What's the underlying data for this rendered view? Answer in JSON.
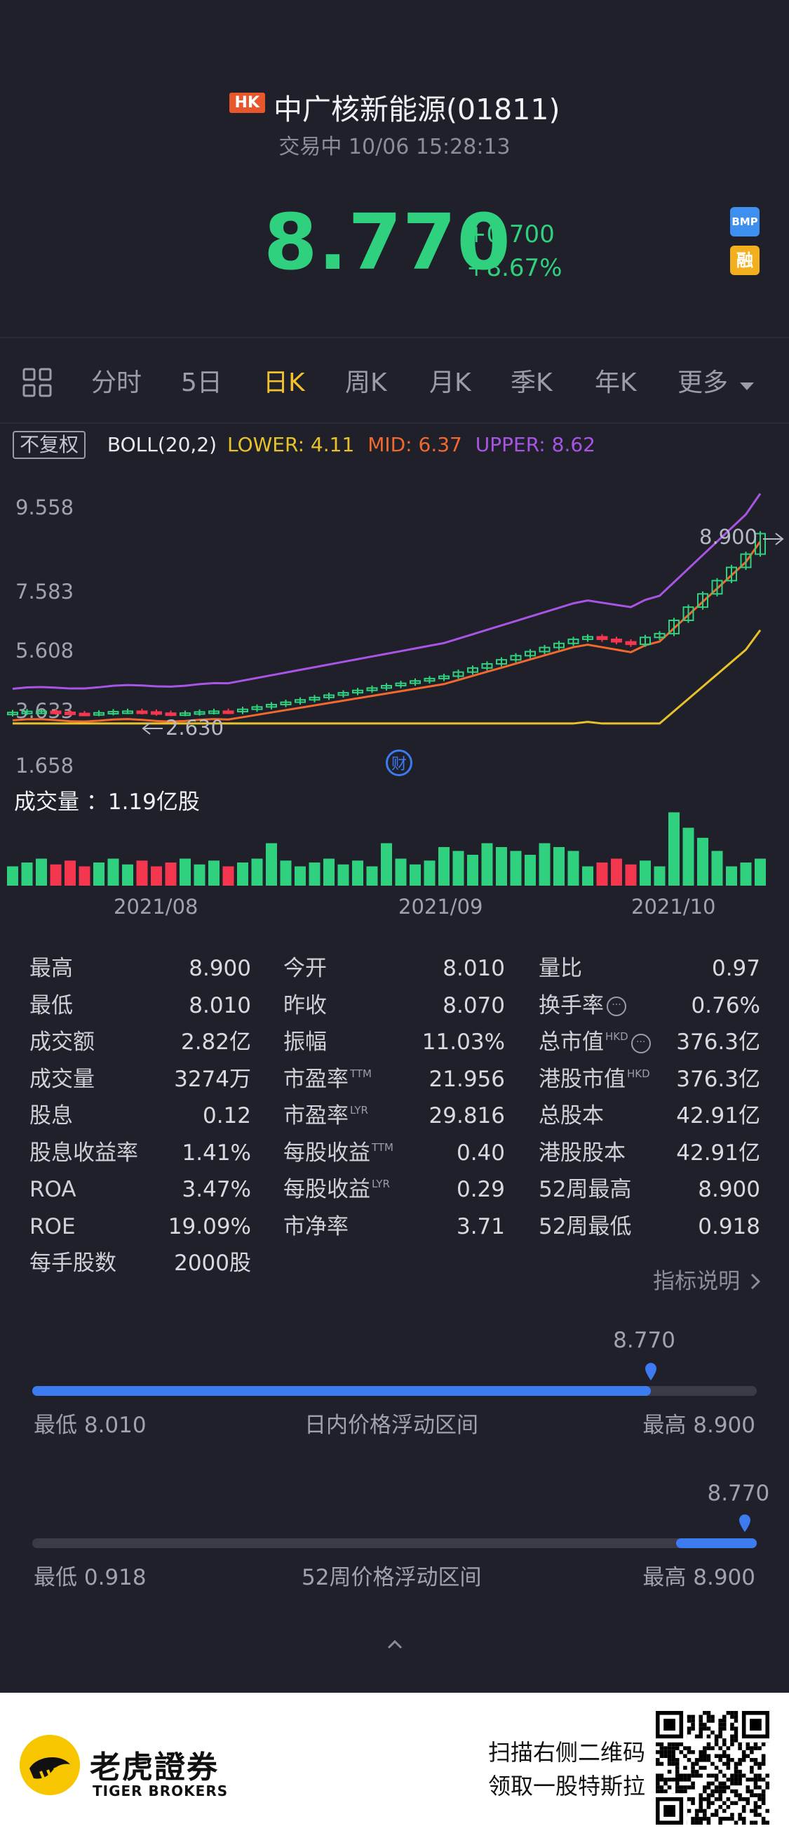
{
  "header": {
    "market_badge": "HK",
    "title": "中广核新能源(01811)",
    "status": "交易中 10/06 15:28:13",
    "price": "8.770",
    "change_abs": "+0.700",
    "change_pct": "+8.67%",
    "badge_bmp": "BMP",
    "badge_margin": "融"
  },
  "tabs": [
    "分时",
    "5日",
    "日K",
    "周K",
    "月K",
    "季K",
    "年K",
    "更多"
  ],
  "active_tab": "日K",
  "chart_header": {
    "adjust_label": "不复权",
    "boll_label": "BOLL(20,2)",
    "lower": "LOWER: 4.11",
    "mid": "MID: 6.37",
    "upper": "UPPER: 8.62"
  },
  "chart_axis": {
    "y_ticks": [
      "9.558",
      "7.583",
      "5.608",
      "3.633",
      "1.658"
    ],
    "high_marker": "8.900",
    "low_marker": "2.630",
    "volume_label": "成交量 ：1.19亿股",
    "dates": [
      "2021/08",
      "2021/09",
      "2021/10"
    ],
    "finance_icon_label": "财"
  },
  "chart_data": {
    "type": "candlestick",
    "title": "",
    "ylim": [
      1.658,
      9.558
    ],
    "boll": {
      "lower": 4.11,
      "mid": 6.37,
      "upper": 8.62
    },
    "annotations": {
      "high": 8.9,
      "low": 2.63
    },
    "volume_text": "1.19亿股",
    "x_labels": [
      "2021/08",
      "2021/09",
      "2021/10"
    ]
  },
  "stats": {
    "col1": [
      {
        "label": "最高",
        "value": "8.900"
      },
      {
        "label": "最低",
        "value": "8.010"
      },
      {
        "label": "成交额",
        "value": "2.82亿"
      },
      {
        "label": "成交量",
        "value": "3274万"
      },
      {
        "label": "股息",
        "value": "0.12"
      },
      {
        "label": "股息收益率",
        "value": "1.41%"
      },
      {
        "label": "ROA",
        "value": "3.47%"
      },
      {
        "label": "ROE",
        "value": "19.09%"
      },
      {
        "label": "每手股数",
        "value": "2000股"
      }
    ],
    "col2": [
      {
        "label": "今开",
        "value": "8.010",
        "tag": ""
      },
      {
        "label": "昨收",
        "value": "8.070",
        "tag": ""
      },
      {
        "label": "振幅",
        "value": "11.03%",
        "tag": ""
      },
      {
        "label": "市盈率",
        "value": "21.956",
        "tag": "TTM"
      },
      {
        "label": "市盈率",
        "value": "29.816",
        "tag": "LYR"
      },
      {
        "label": "每股收益",
        "value": "0.40",
        "tag": "TTM"
      },
      {
        "label": "每股收益",
        "value": "0.29",
        "tag": "LYR"
      },
      {
        "label": "市净率",
        "value": "3.71",
        "tag": ""
      }
    ],
    "col3": [
      {
        "label": "量比",
        "value": "0.97",
        "tag": ""
      },
      {
        "label": "换手率",
        "value": "0.76%",
        "tag": ""
      },
      {
        "label": "总市值",
        "value": "376.3亿",
        "tag": "HKD"
      },
      {
        "label": "港股市值",
        "value": "376.3亿",
        "tag": "HKD"
      },
      {
        "label": "总股本",
        "value": "42.91亿",
        "tag": ""
      },
      {
        "label": "港股股本",
        "value": "42.91亿",
        "tag": ""
      },
      {
        "label": "52周最高",
        "value": "8.900",
        "tag": ""
      },
      {
        "label": "52周最低",
        "value": "0.918",
        "tag": ""
      }
    ]
  },
  "indicator_link": "指标说明",
  "day_range": {
    "current": "8.770",
    "low_label": "最低 8.010",
    "title": "日内价格浮动区间",
    "high_label": "最高 8.900",
    "fraction": 0.854
  },
  "week52_range": {
    "current": "8.770",
    "low_label": "最低 0.918",
    "title": "52周价格浮动区间",
    "high_label": "最高 8.900",
    "fraction": 0.984
  },
  "footer": {
    "brand_cn": "老虎證券",
    "brand_en": "TIGER BROKERS",
    "promo_line1": "扫描右侧二维码",
    "promo_line2": "领取一股特斯拉"
  },
  "colors": {
    "up": "#2fd07e",
    "down": "#f5364f",
    "accent": "#f2c22e",
    "boll_upper": "#a855e6",
    "boll_mid": "#f2692d",
    "boll_lower": "#e9c22b",
    "range": "#3d7bf0"
  }
}
